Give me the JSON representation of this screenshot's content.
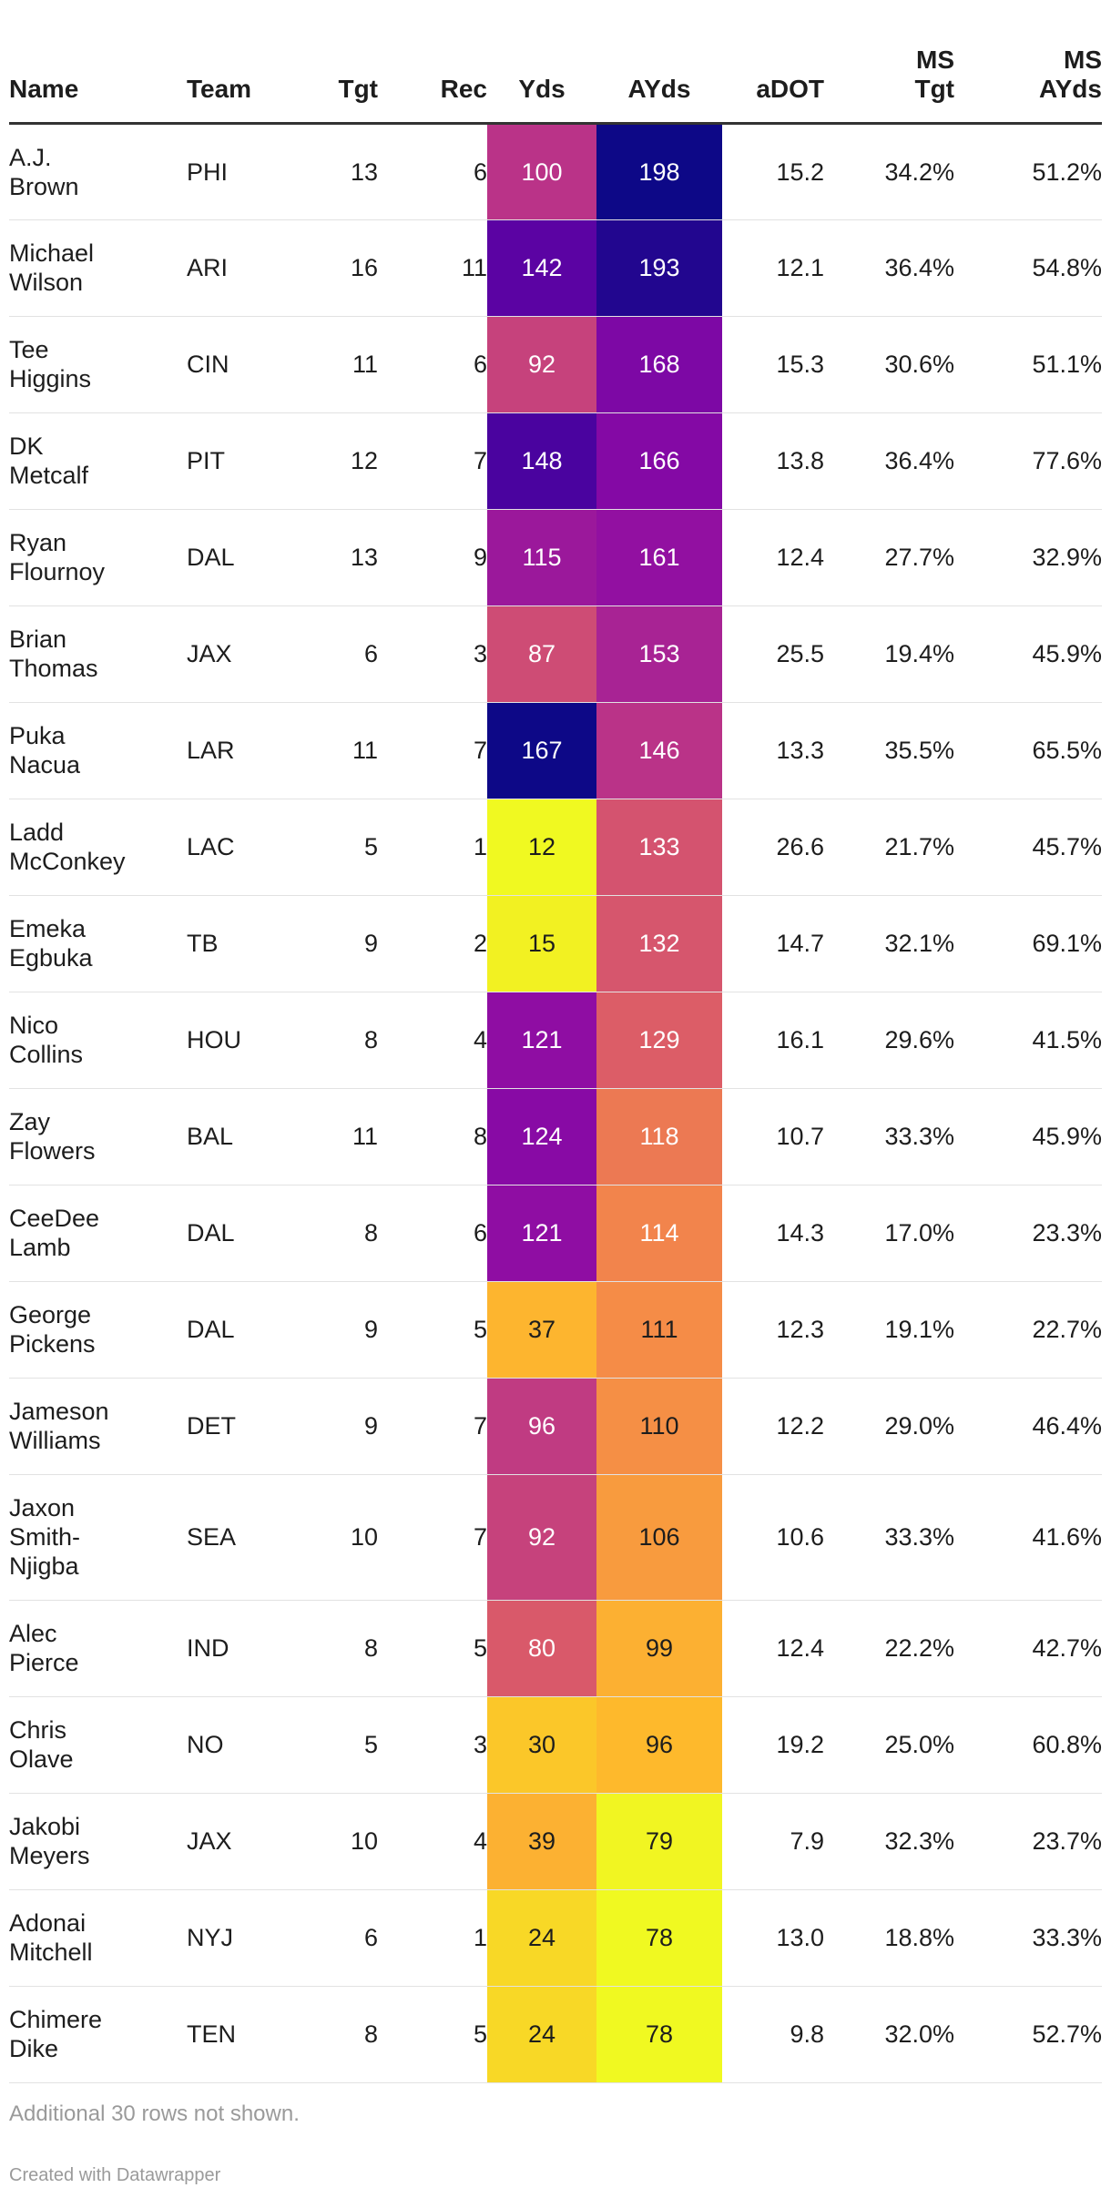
{
  "chart_data": {
    "type": "table",
    "columns": [
      "Name",
      "Team",
      "Tgt",
      "Rec",
      "Yds",
      "AYds",
      "aDOT",
      "MS Tgt",
      "MS AYds"
    ],
    "rows": [
      {
        "name": "A.J. Brown",
        "team": "PHI",
        "tgt": "13",
        "rec": "6",
        "yds": "100",
        "ayds": "198",
        "adot": "15.2",
        "ms_tgt": "34.2%",
        "ms_ayds": "51.2%"
      },
      {
        "name": "Michael Wilson",
        "team": "ARI",
        "tgt": "16",
        "rec": "11",
        "yds": "142",
        "ayds": "193",
        "adot": "12.1",
        "ms_tgt": "36.4%",
        "ms_ayds": "54.8%"
      },
      {
        "name": "Tee Higgins",
        "team": "CIN",
        "tgt": "11",
        "rec": "6",
        "yds": "92",
        "ayds": "168",
        "adot": "15.3",
        "ms_tgt": "30.6%",
        "ms_ayds": "51.1%"
      },
      {
        "name": "DK Metcalf",
        "team": "PIT",
        "tgt": "12",
        "rec": "7",
        "yds": "148",
        "ayds": "166",
        "adot": "13.8",
        "ms_tgt": "36.4%",
        "ms_ayds": "77.6%"
      },
      {
        "name": "Ryan Flournoy",
        "team": "DAL",
        "tgt": "13",
        "rec": "9",
        "yds": "115",
        "ayds": "161",
        "adot": "12.4",
        "ms_tgt": "27.7%",
        "ms_ayds": "32.9%"
      },
      {
        "name": "Brian Thomas",
        "team": "JAX",
        "tgt": "6",
        "rec": "3",
        "yds": "87",
        "ayds": "153",
        "adot": "25.5",
        "ms_tgt": "19.4%",
        "ms_ayds": "45.9%"
      },
      {
        "name": "Puka Nacua",
        "team": "LAR",
        "tgt": "11",
        "rec": "7",
        "yds": "167",
        "ayds": "146",
        "adot": "13.3",
        "ms_tgt": "35.5%",
        "ms_ayds": "65.5%"
      },
      {
        "name": "Ladd McConkey",
        "team": "LAC",
        "tgt": "5",
        "rec": "1",
        "yds": "12",
        "ayds": "133",
        "adot": "26.6",
        "ms_tgt": "21.7%",
        "ms_ayds": "45.7%"
      },
      {
        "name": "Emeka Egbuka",
        "team": "TB",
        "tgt": "9",
        "rec": "2",
        "yds": "15",
        "ayds": "132",
        "adot": "14.7",
        "ms_tgt": "32.1%",
        "ms_ayds": "69.1%"
      },
      {
        "name": "Nico Collins",
        "team": "HOU",
        "tgt": "8",
        "rec": "4",
        "yds": "121",
        "ayds": "129",
        "adot": "16.1",
        "ms_tgt": "29.6%",
        "ms_ayds": "41.5%"
      },
      {
        "name": "Zay Flowers",
        "team": "BAL",
        "tgt": "11",
        "rec": "8",
        "yds": "124",
        "ayds": "118",
        "adot": "10.7",
        "ms_tgt": "33.3%",
        "ms_ayds": "45.9%"
      },
      {
        "name": "CeeDee Lamb",
        "team": "DAL",
        "tgt": "8",
        "rec": "6",
        "yds": "121",
        "ayds": "114",
        "adot": "14.3",
        "ms_tgt": "17.0%",
        "ms_ayds": "23.3%"
      },
      {
        "name": "George Pickens",
        "team": "DAL",
        "tgt": "9",
        "rec": "5",
        "yds": "37",
        "ayds": "111",
        "adot": "12.3",
        "ms_tgt": "19.1%",
        "ms_ayds": "22.7%"
      },
      {
        "name": "Jameson Williams",
        "team": "DET",
        "tgt": "9",
        "rec": "7",
        "yds": "96",
        "ayds": "110",
        "adot": "12.2",
        "ms_tgt": "29.0%",
        "ms_ayds": "46.4%"
      },
      {
        "name": "Jaxon Smith-Njigba",
        "team": "SEA",
        "tgt": "10",
        "rec": "7",
        "yds": "92",
        "ayds": "106",
        "adot": "10.6",
        "ms_tgt": "33.3%",
        "ms_ayds": "41.6%"
      },
      {
        "name": "Alec Pierce",
        "team": "IND",
        "tgt": "8",
        "rec": "5",
        "yds": "80",
        "ayds": "99",
        "adot": "12.4",
        "ms_tgt": "22.2%",
        "ms_ayds": "42.7%"
      },
      {
        "name": "Chris Olave",
        "team": "NO",
        "tgt": "5",
        "rec": "3",
        "yds": "30",
        "ayds": "96",
        "adot": "19.2",
        "ms_tgt": "25.0%",
        "ms_ayds": "60.8%"
      },
      {
        "name": "Jakobi Meyers",
        "team": "JAX",
        "tgt": "10",
        "rec": "4",
        "yds": "39",
        "ayds": "79",
        "adot": "7.9",
        "ms_tgt": "32.3%",
        "ms_ayds": "23.7%"
      },
      {
        "name": "Adonai Mitchell",
        "team": "NYJ",
        "tgt": "6",
        "rec": "1",
        "yds": "24",
        "ayds": "78",
        "adot": "13.0",
        "ms_tgt": "18.8%",
        "ms_ayds": "33.3%"
      },
      {
        "name": "Chimere Dike",
        "team": "TEN",
        "tgt": "8",
        "rec": "5",
        "yds": "24",
        "ayds": "78",
        "adot": "9.8",
        "ms_tgt": "32.0%",
        "ms_ayds": "52.7%"
      }
    ],
    "heatmap_columns": [
      "Yds",
      "AYds"
    ],
    "colorscale": "plasma",
    "yds_range": [
      12,
      167
    ],
    "ayds_range": [
      78,
      198
    ]
  },
  "table": {
    "headers": {
      "name": "Name",
      "team": "Team",
      "tgt": "Tgt",
      "rec": "Rec",
      "yds": "Yds",
      "ayds": "AYds",
      "adot": "aDOT",
      "ms_tgt": "MS Tgt",
      "ms_ayds": "MS AYds"
    }
  },
  "footer": {
    "note": "Additional 30 rows not shown.",
    "credit": "Created with Datawrapper"
  }
}
